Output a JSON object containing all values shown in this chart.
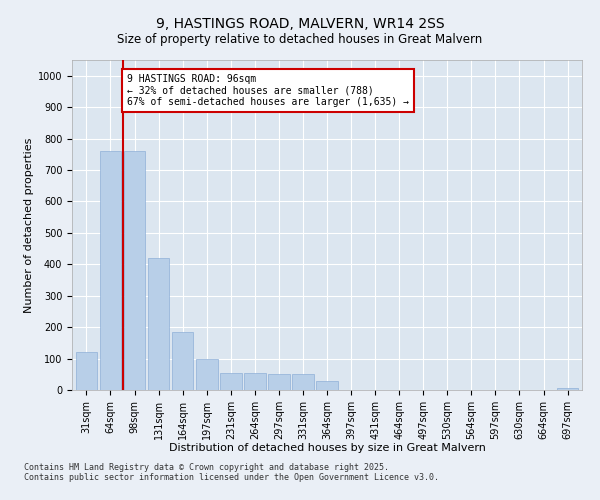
{
  "title": "9, HASTINGS ROAD, MALVERN, WR14 2SS",
  "subtitle": "Size of property relative to detached houses in Great Malvern",
  "xlabel": "Distribution of detached houses by size in Great Malvern",
  "ylabel": "Number of detached properties",
  "categories": [
    "31sqm",
    "64sqm",
    "98sqm",
    "131sqm",
    "164sqm",
    "197sqm",
    "231sqm",
    "264sqm",
    "297sqm",
    "331sqm",
    "364sqm",
    "397sqm",
    "431sqm",
    "464sqm",
    "497sqm",
    "530sqm",
    "564sqm",
    "597sqm",
    "630sqm",
    "664sqm",
    "697sqm"
  ],
  "values": [
    120,
    760,
    760,
    420,
    185,
    100,
    55,
    55,
    50,
    50,
    30,
    0,
    0,
    0,
    0,
    0,
    0,
    0,
    0,
    0,
    5
  ],
  "bar_color": "#b8cfe8",
  "bar_edge_color": "#8fb0d8",
  "vline_color": "#cc0000",
  "vline_pos": 1.5,
  "annotation_text": "9 HASTINGS ROAD: 96sqm\n← 32% of detached houses are smaller (788)\n67% of semi-detached houses are larger (1,635) →",
  "annotation_box_facecolor": "#ffffff",
  "annotation_box_edgecolor": "#cc0000",
  "ylim": [
    0,
    1050
  ],
  "yticks": [
    0,
    100,
    200,
    300,
    400,
    500,
    600,
    700,
    800,
    900,
    1000
  ],
  "bg_color": "#eaeff6",
  "plot_bg_color": "#dce6f0",
  "footer_line1": "Contains HM Land Registry data © Crown copyright and database right 2025.",
  "footer_line2": "Contains public sector information licensed under the Open Government Licence v3.0.",
  "title_fontsize": 10,
  "subtitle_fontsize": 8.5,
  "axis_label_fontsize": 8,
  "tick_fontsize": 7,
  "annotation_fontsize": 7,
  "footer_fontsize": 6
}
